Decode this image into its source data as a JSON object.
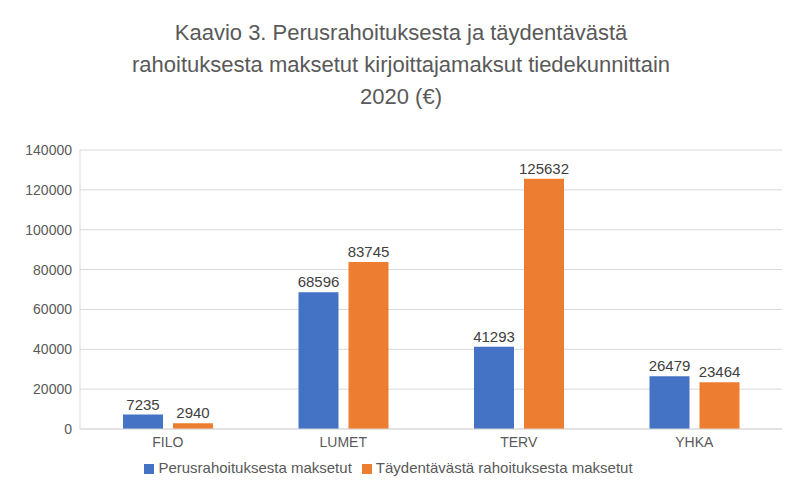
{
  "chart_data": {
    "type": "bar",
    "title": "Kaavio 3. Perusrahoituksesta ja täydentävästä rahoituksesta maksetut kirjoittajamaksut tiedekunnittain 2020 (€)",
    "categories": [
      "FILO",
      "LUMET",
      "TERV",
      "YHKA"
    ],
    "series": [
      {
        "name": "Perusrahoituksesta maksetut",
        "color": "#4472c4",
        "values": [
          7235,
          68596,
          41293,
          26479
        ]
      },
      {
        "name": "Täydentävästä rahoituksesta maksetut",
        "color": "#ed7d31",
        "values": [
          2940,
          83745,
          125632,
          23464
        ]
      }
    ],
    "ylim": [
      0,
      140000
    ],
    "yticks": [
      0,
      20000,
      40000,
      60000,
      80000,
      100000,
      120000,
      140000
    ],
    "grid": true,
    "data_labels": true,
    "legend": "bottom"
  }
}
